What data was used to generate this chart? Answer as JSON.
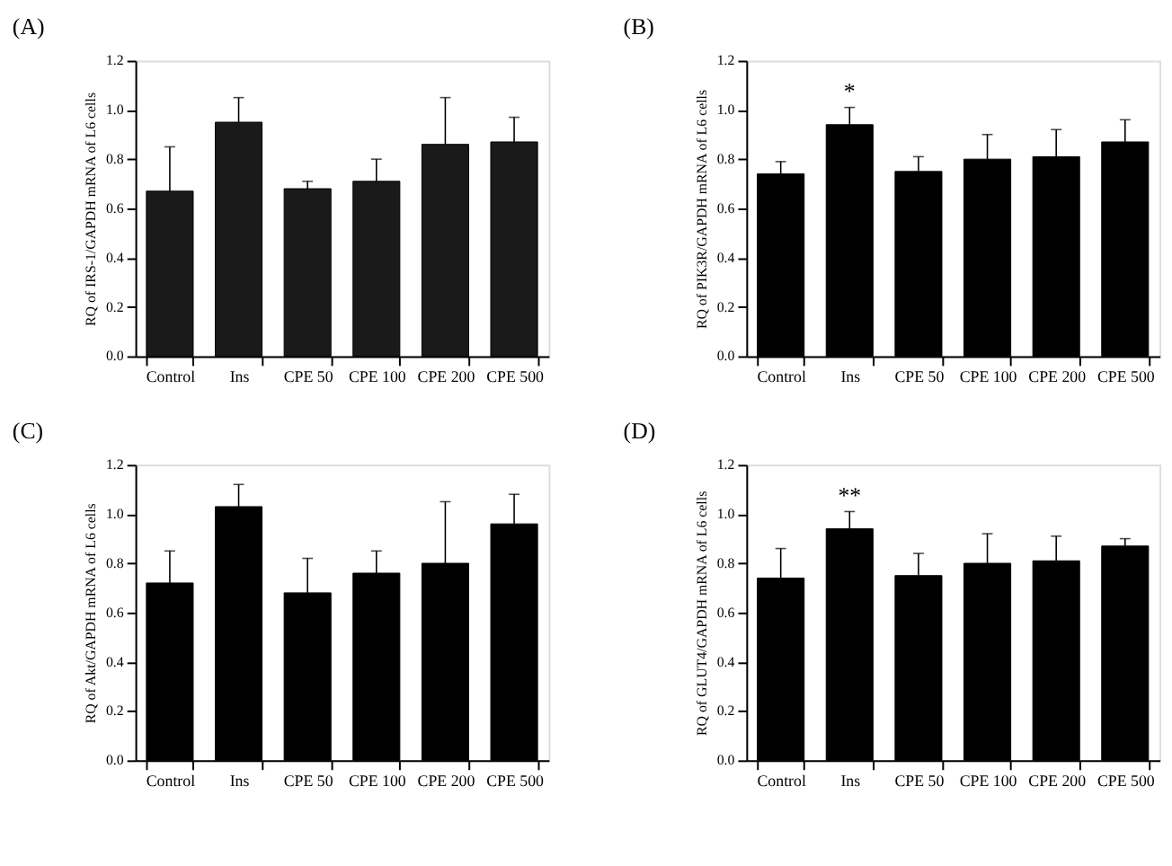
{
  "chart_data": [
    {
      "type": "bar",
      "title": "(A)",
      "ylabel": "RQ of IRS-1/GAPDH mRNA of L6 cells",
      "categories": [
        "Control",
        "Ins",
        "CPE 50",
        "CPE 100",
        "CPE 200",
        "CPE 500"
      ],
      "series": [
        {
          "color": "#1a1a1a",
          "values": [
            0.67,
            0.95,
            0.68,
            0.71,
            0.86,
            0.87
          ],
          "errors": [
            [
              0.67,
              0.85
            ],
            [
              0.95,
              1.05
            ],
            [
              0.68,
              0.71
            ],
            [
              0.71,
              0.8
            ],
            [
              0.86,
              1.05
            ],
            [
              0.87,
              0.97
            ]
          ]
        }
      ],
      "ylim": [
        0,
        1.2
      ],
      "yticks": [
        {
          "value": 0,
          "label": "0.0"
        },
        {
          "value": 0.2,
          "label": "0.2"
        },
        {
          "value": 0.4,
          "label": "0.4"
        },
        {
          "value": 0.6,
          "label": "0.6"
        },
        {
          "value": 0.8,
          "label": "0.8"
        },
        {
          "value": 1.0,
          "label": "1.0"
        },
        {
          "value": 1.2,
          "label": "1.2"
        }
      ],
      "grid": false
    },
    {
      "type": "bar",
      "title": "(B)",
      "ylabel": "RQ of PIK3R/GAPDH mRNA of L6 cells",
      "categories": [
        "Control",
        "Ins",
        "CPE 50",
        "CPE 100",
        "CPE 200",
        "CPE 500"
      ],
      "series": [
        {
          "color": "#000000",
          "values": [
            0.74,
            0.94,
            0.75,
            0.8,
            0.81,
            0.87
          ],
          "errors": [
            [
              0.74,
              0.79
            ],
            [
              0.94,
              1.01
            ],
            [
              0.75,
              0.81
            ],
            [
              0.8,
              0.9
            ],
            [
              0.81,
              0.92
            ],
            [
              0.87,
              0.96
            ]
          ]
        }
      ],
      "annotations": [
        {
          "text": "*",
          "x": "Ins",
          "y": 1.01
        }
      ],
      "ylim": [
        0,
        1.2
      ],
      "yticks": [
        {
          "value": 0,
          "label": "0.0"
        },
        {
          "value": 0.2,
          "label": "0.2"
        },
        {
          "value": 0.4,
          "label": "0.4"
        },
        {
          "value": 0.6,
          "label": "0.6"
        },
        {
          "value": 0.8,
          "label": "0.8"
        },
        {
          "value": 1.0,
          "label": "1.0"
        },
        {
          "value": 1.2,
          "label": "1.2"
        }
      ],
      "grid": false
    },
    {
      "type": "bar",
      "title": "(C)",
      "ylabel": "RQ of Akt/GAPDH mRNA of L6 cells",
      "categories": [
        "Control",
        "Ins",
        "CPE 50",
        "CPE 100",
        "CPE 200",
        "CPE 500"
      ],
      "series": [
        {
          "color": "#000000",
          "values": [
            0.72,
            1.03,
            0.68,
            0.76,
            0.8,
            0.96
          ],
          "errors": [
            [
              0.72,
              0.85
            ],
            [
              1.03,
              1.12
            ],
            [
              0.68,
              0.82
            ],
            [
              0.76,
              0.85
            ],
            [
              0.8,
              1.05
            ],
            [
              0.96,
              1.08
            ]
          ]
        }
      ],
      "ylim": [
        0,
        1.2
      ],
      "yticks": [
        {
          "value": 0,
          "label": "0.0"
        },
        {
          "value": 0.2,
          "label": "0.2"
        },
        {
          "value": 0.4,
          "label": "0.4"
        },
        {
          "value": 0.6,
          "label": "0.6"
        },
        {
          "value": 0.8,
          "label": "0.8"
        },
        {
          "value": 1.0,
          "label": "1.0"
        },
        {
          "value": 1.2,
          "label": "1.2"
        }
      ],
      "grid": false
    },
    {
      "type": "bar",
      "title": "(D)",
      "ylabel": "RQ of GLUT4/GAPDH mRNA of L6 cells",
      "categories": [
        "Control",
        "Ins",
        "CPE 50",
        "CPE 100",
        "CPE 200",
        "CPE 500"
      ],
      "series": [
        {
          "color": "#000000",
          "values": [
            0.74,
            0.94,
            0.75,
            0.8,
            0.81,
            0.87
          ],
          "errors": [
            [
              0.74,
              0.86
            ],
            [
              0.94,
              1.01
            ],
            [
              0.75,
              0.84
            ],
            [
              0.8,
              0.92
            ],
            [
              0.81,
              0.91
            ],
            [
              0.87,
              0.9
            ]
          ]
        }
      ],
      "annotations": [
        {
          "text": "**",
          "x": "Ins",
          "y": 1.01
        }
      ],
      "ylim": [
        0,
        1.2
      ],
      "yticks": [
        {
          "value": 0,
          "label": "0.0"
        },
        {
          "value": 0.2,
          "label": "0.2"
        },
        {
          "value": 0.4,
          "label": "0.4"
        },
        {
          "value": 0.6,
          "label": "0.6"
        },
        {
          "value": 0.8,
          "label": "0.8"
        },
        {
          "value": 1.0,
          "label": "1.0"
        },
        {
          "value": 1.2,
          "label": "1.2"
        }
      ],
      "grid": false
    }
  ]
}
